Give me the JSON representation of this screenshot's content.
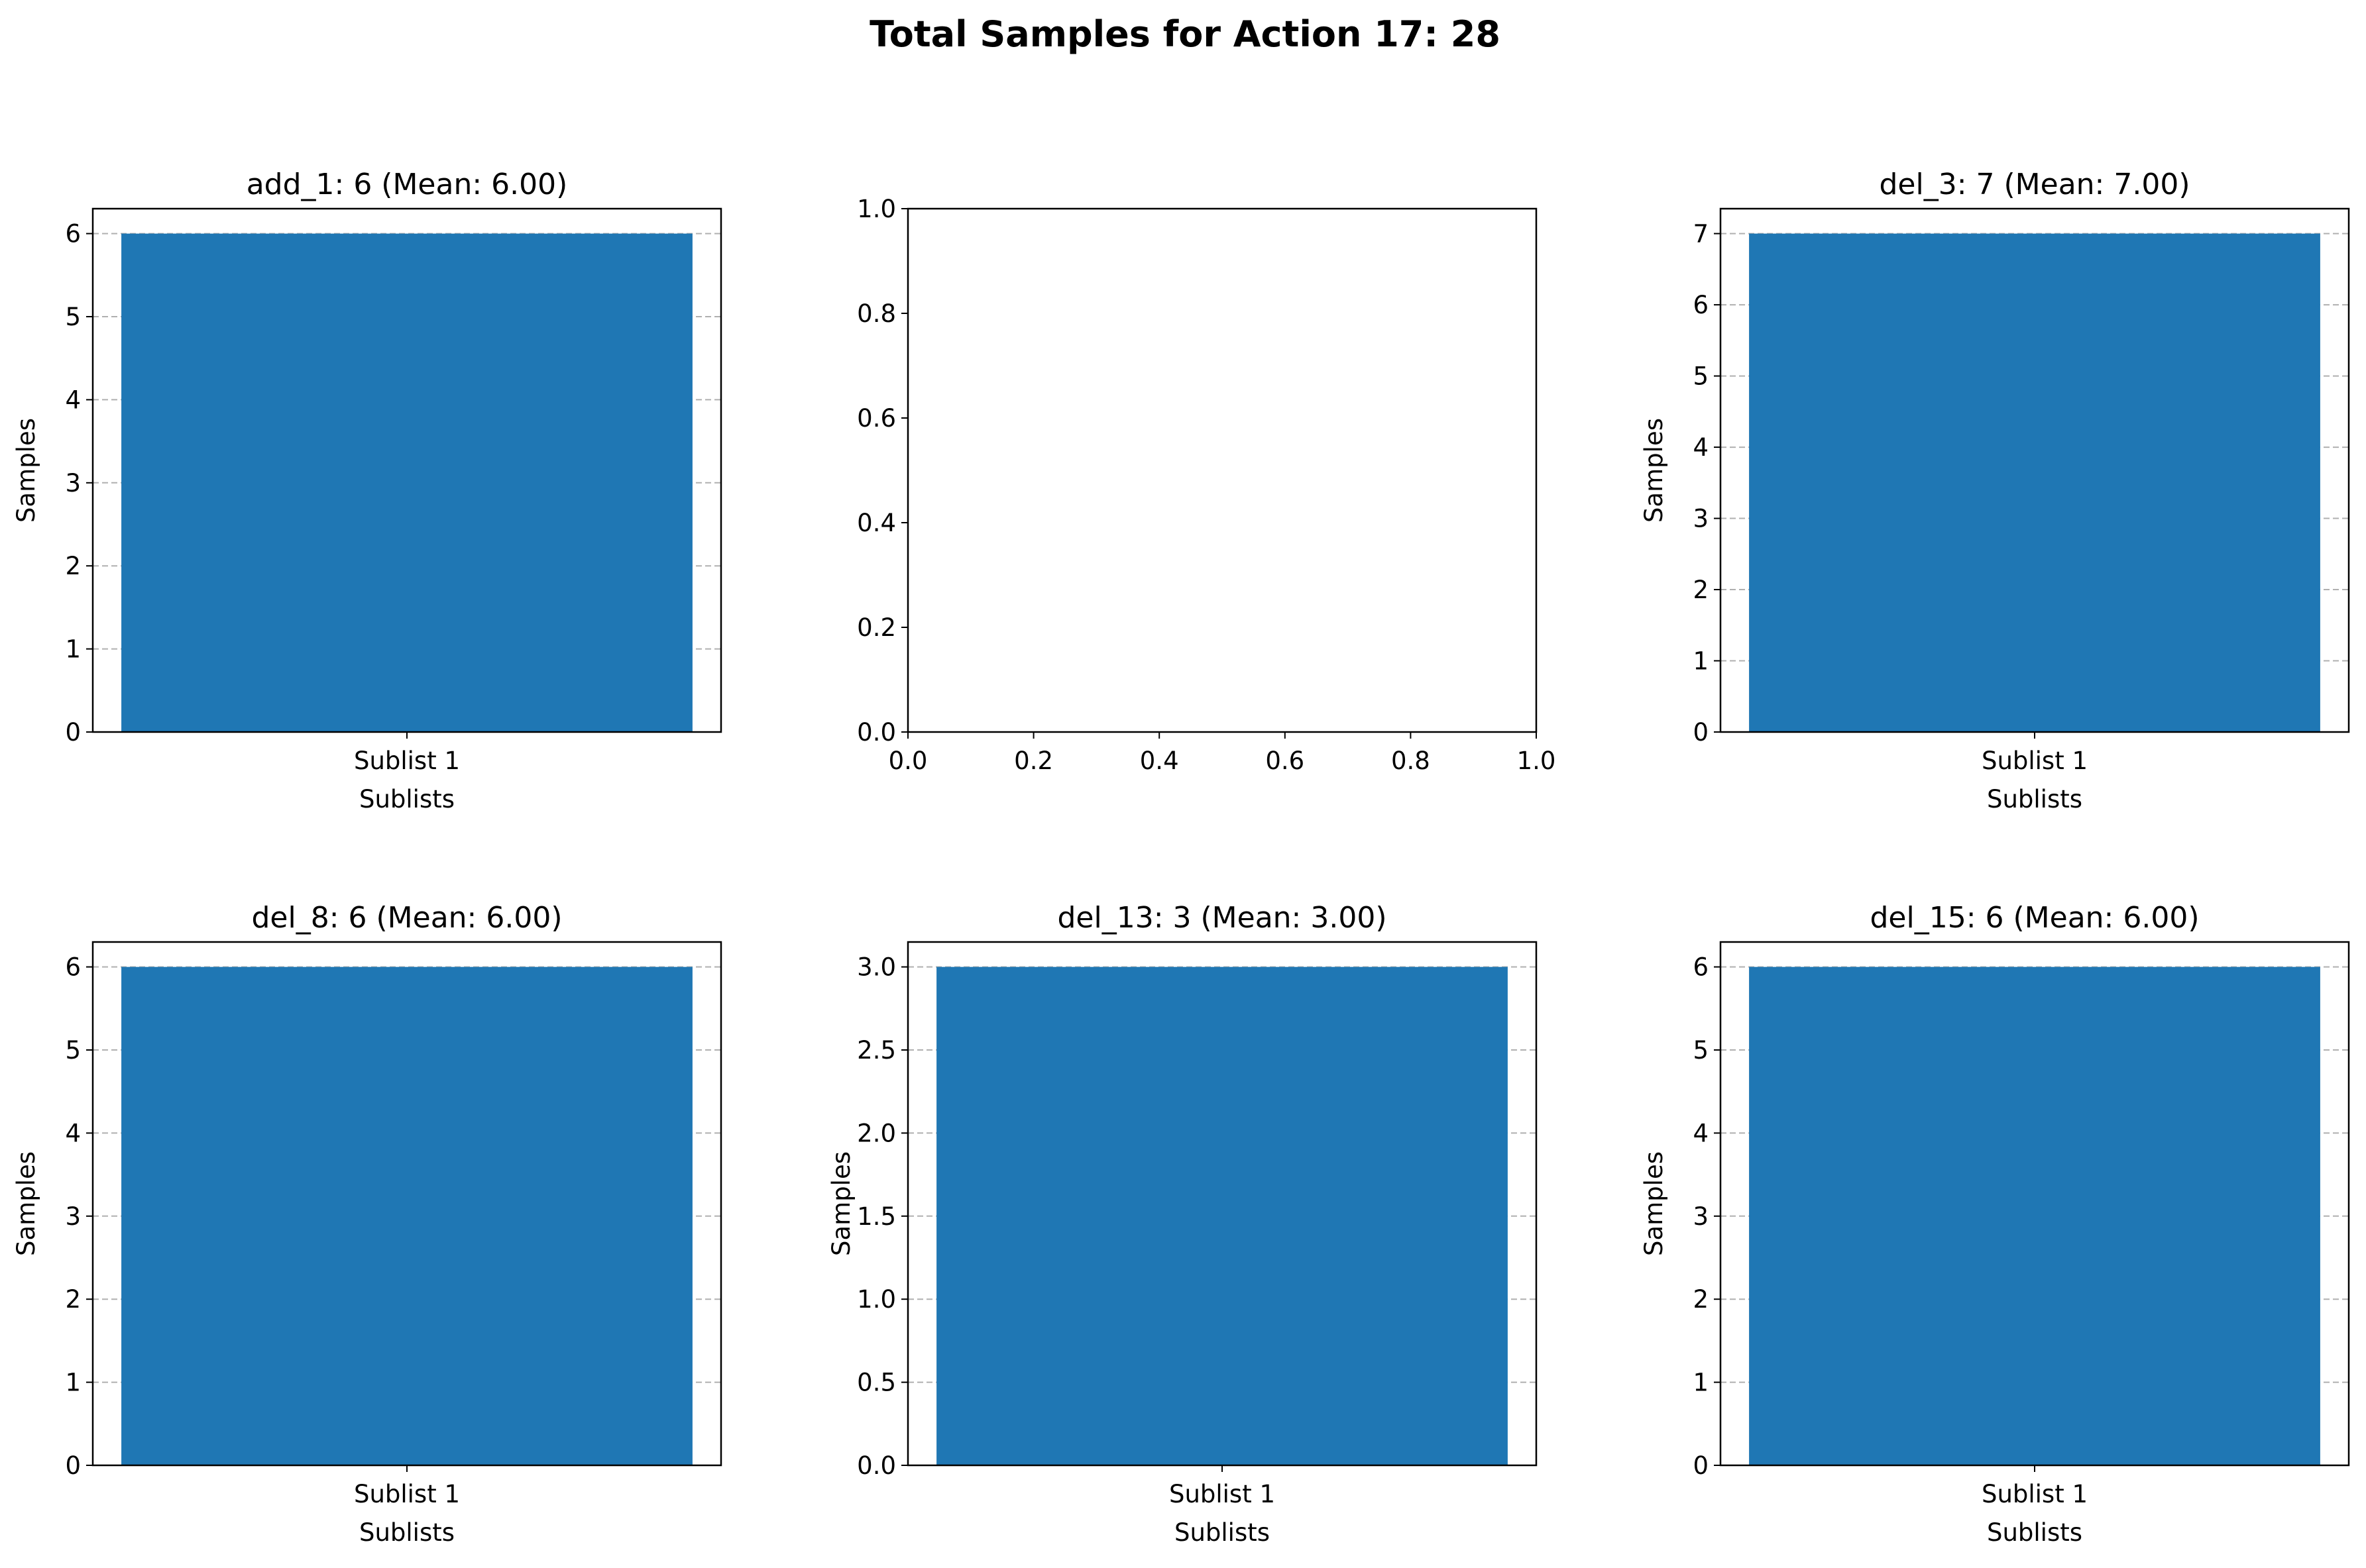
{
  "figure": {
    "suptitle": "Total Samples for Action 17: 28",
    "bar_color": "#1f77b4",
    "grid_color": "#b0b0b0"
  },
  "chart_data": [
    {
      "type": "bar",
      "title": "add_1: 6 (Mean: 6.00)",
      "categories": [
        "Sublist 1"
      ],
      "values": [
        6
      ],
      "xlabel": "Sublists",
      "ylabel": "Samples",
      "ylim": [
        0,
        6.3
      ],
      "yticks": [
        0,
        1,
        2,
        3,
        4,
        5,
        6
      ],
      "ytick_labels": [
        "0",
        "1",
        "2",
        "3",
        "4",
        "5",
        "6"
      ],
      "grid": "y-dashed"
    },
    {
      "type": "bar",
      "title": "",
      "categories": [],
      "values": [],
      "xlabel": "",
      "ylabel": "",
      "xlim": [
        0,
        1
      ],
      "ylim": [
        0,
        1
      ],
      "xticks": [
        0,
        0.2,
        0.4,
        0.6,
        0.8,
        1.0
      ],
      "xtick_labels": [
        "0.0",
        "0.2",
        "0.4",
        "0.6",
        "0.8",
        "1.0"
      ],
      "yticks": [
        0,
        0.2,
        0.4,
        0.6,
        0.8,
        1.0
      ],
      "ytick_labels": [
        "0.0",
        "0.2",
        "0.4",
        "0.6",
        "0.8",
        "1.0"
      ],
      "grid": "off"
    },
    {
      "type": "bar",
      "title": "del_3: 7 (Mean: 7.00)",
      "categories": [
        "Sublist 1"
      ],
      "values": [
        7
      ],
      "xlabel": "Sublists",
      "ylabel": "Samples",
      "ylim": [
        0,
        7.35
      ],
      "yticks": [
        0,
        1,
        2,
        3,
        4,
        5,
        6,
        7
      ],
      "ytick_labels": [
        "0",
        "1",
        "2",
        "3",
        "4",
        "5",
        "6",
        "7"
      ],
      "grid": "y-dashed"
    },
    {
      "type": "bar",
      "title": "del_8: 6 (Mean: 6.00)",
      "categories": [
        "Sublist 1"
      ],
      "values": [
        6
      ],
      "xlabel": "Sublists",
      "ylabel": "Samples",
      "ylim": [
        0,
        6.3
      ],
      "yticks": [
        0,
        1,
        2,
        3,
        4,
        5,
        6
      ],
      "ytick_labels": [
        "0",
        "1",
        "2",
        "3",
        "4",
        "5",
        "6"
      ],
      "grid": "y-dashed"
    },
    {
      "type": "bar",
      "title": "del_13: 3 (Mean: 3.00)",
      "categories": [
        "Sublist 1"
      ],
      "values": [
        3
      ],
      "xlabel": "Sublists",
      "ylabel": "Samples",
      "ylim": [
        0,
        3.15
      ],
      "yticks": [
        0,
        0.5,
        1.0,
        1.5,
        2.0,
        2.5,
        3.0
      ],
      "ytick_labels": [
        "0.0",
        "0.5",
        "1.0",
        "1.5",
        "2.0",
        "2.5",
        "3.0"
      ],
      "grid": "y-dashed"
    },
    {
      "type": "bar",
      "title": "del_15: 6 (Mean: 6.00)",
      "categories": [
        "Sublist 1"
      ],
      "values": [
        6
      ],
      "xlabel": "Sublists",
      "ylabel": "Samples",
      "ylim": [
        0,
        6.3
      ],
      "yticks": [
        0,
        1,
        2,
        3,
        4,
        5,
        6
      ],
      "ytick_labels": [
        "0",
        "1",
        "2",
        "3",
        "4",
        "5",
        "6"
      ],
      "grid": "y-dashed"
    }
  ]
}
